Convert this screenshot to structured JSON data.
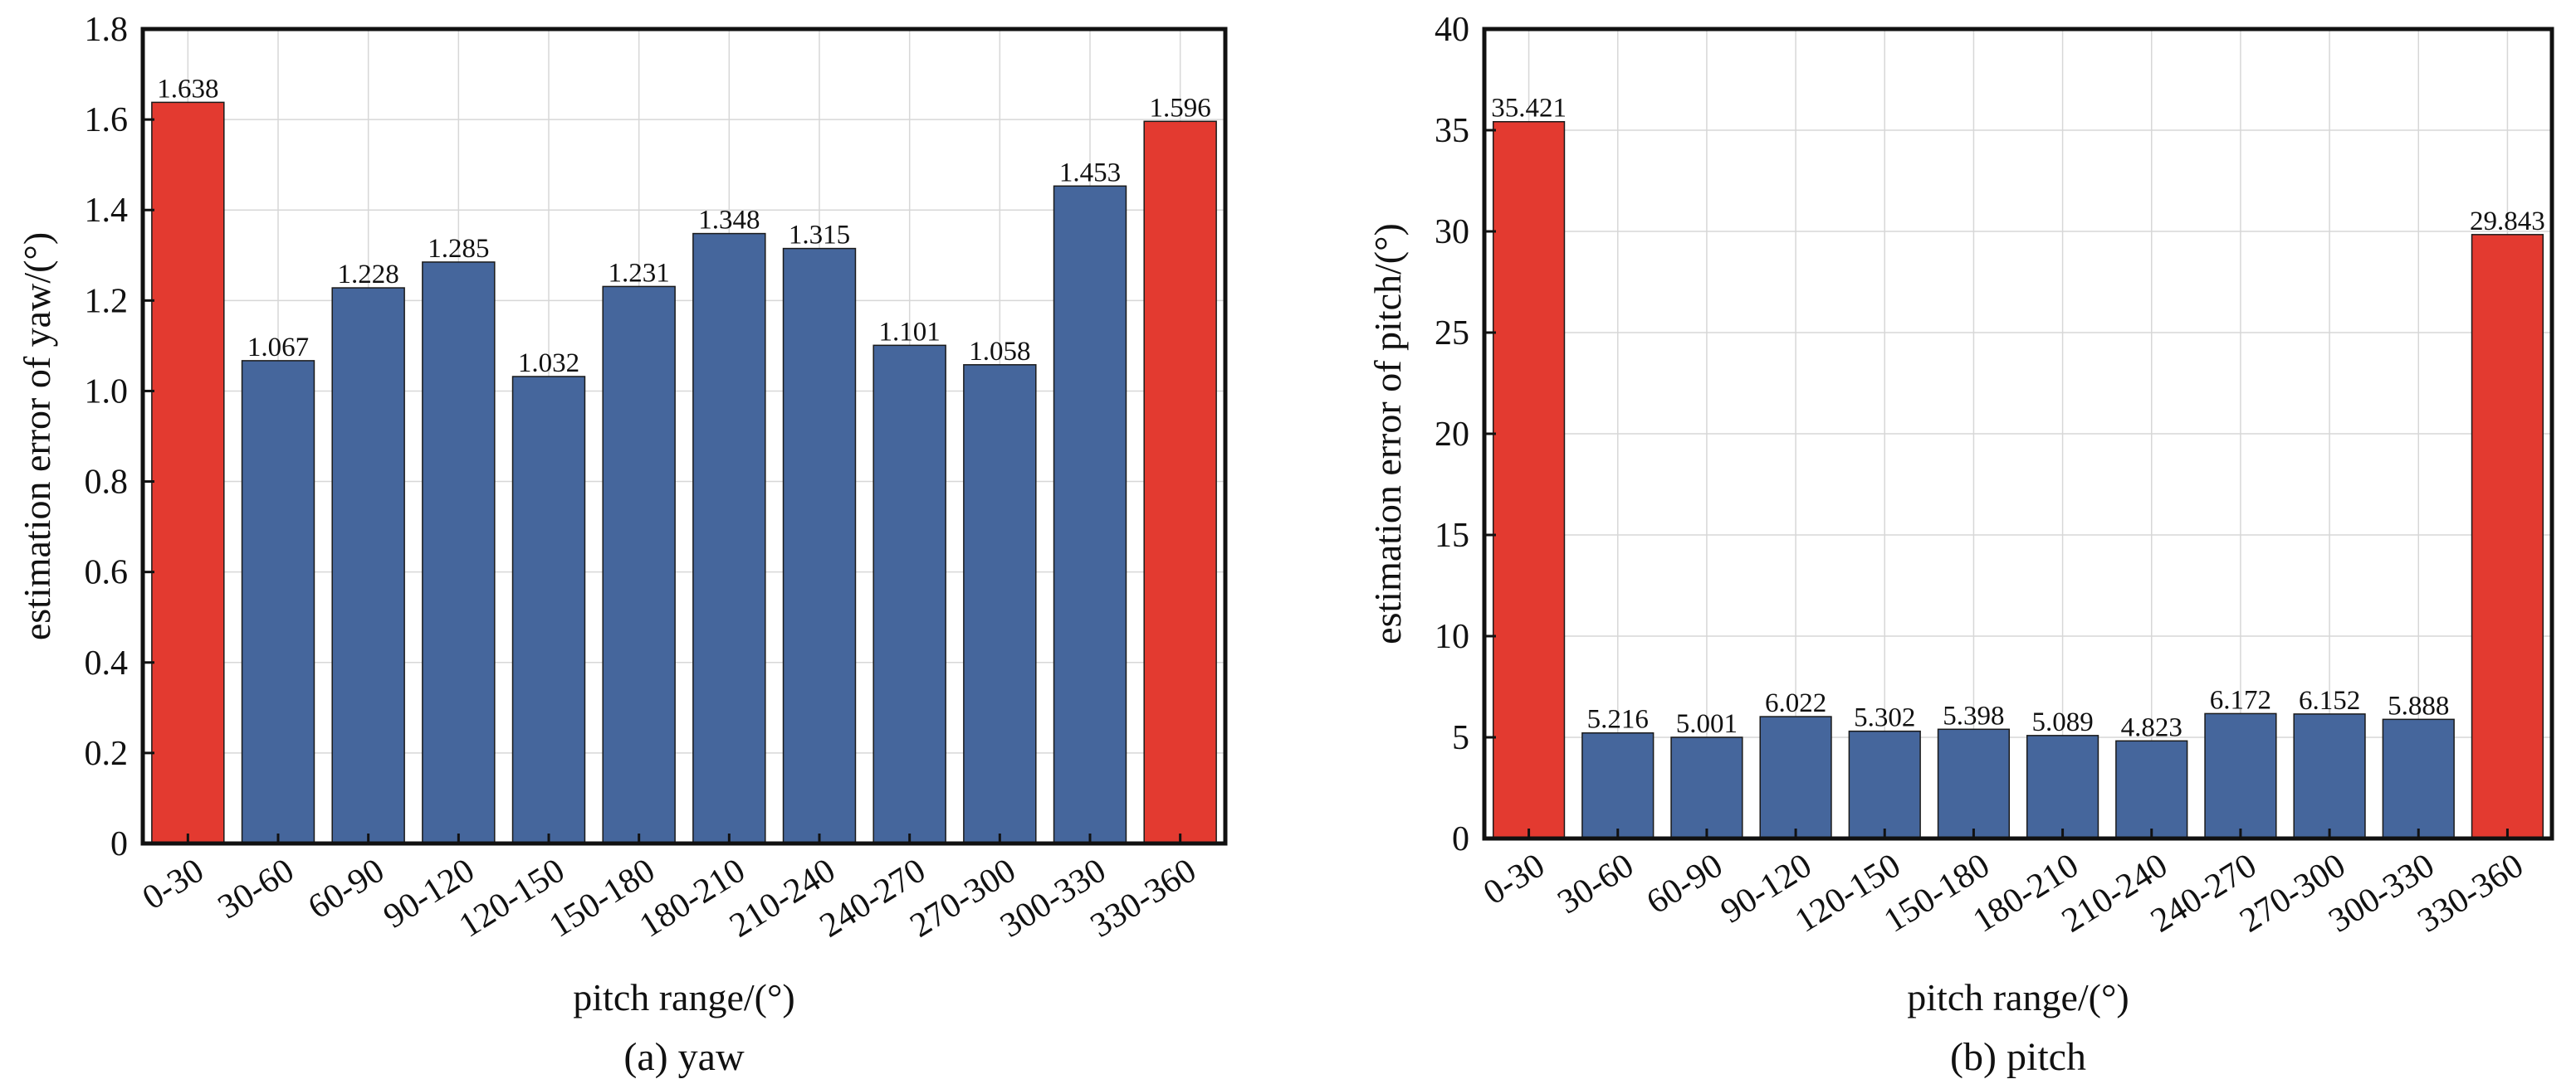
{
  "chart_data": [
    {
      "type": "bar",
      "caption": "(a) yaw",
      "xlabel": "pitch range/(°)",
      "ylabel": "estimation error of yaw/(°)",
      "ylim": [
        0,
        1.8
      ],
      "yticks": [
        "0",
        "0.2",
        "0.4",
        "0.6",
        "0.8",
        "1.0",
        "1.2",
        "1.4",
        "1.6",
        "1.8"
      ],
      "grid": true,
      "categories": [
        "0-30",
        "30-60",
        "60-90",
        "90-120",
        "120-150",
        "150-180",
        "180-210",
        "210-240",
        "240-270",
        "270-300",
        "300-330",
        "330-360"
      ],
      "values": [
        1.638,
        1.067,
        1.228,
        1.285,
        1.032,
        1.231,
        1.348,
        1.315,
        1.101,
        1.058,
        1.453,
        1.596
      ],
      "value_labels": [
        "1.638",
        "1.067",
        "1.228",
        "1.285",
        "1.032",
        "1.231",
        "1.348",
        "1.315",
        "1.101",
        "1.058",
        "1.453",
        "1.596"
      ],
      "colors": [
        "#e33a30",
        "#45669c",
        "#45669c",
        "#45669c",
        "#45669c",
        "#45669c",
        "#45669c",
        "#45669c",
        "#45669c",
        "#45669c",
        "#45669c",
        "#e33a30"
      ]
    },
    {
      "type": "bar",
      "caption": "(b) pitch",
      "xlabel": "pitch range/(°)",
      "ylabel": "estimation error of pitch/(°)",
      "ylim": [
        0,
        40
      ],
      "yticks": [
        "0",
        "5",
        "10",
        "15",
        "20",
        "25",
        "30",
        "35",
        "40"
      ],
      "grid": true,
      "categories": [
        "0-30",
        "30-60",
        "60-90",
        "90-120",
        "120-150",
        "150-180",
        "180-210",
        "210-240",
        "240-270",
        "270-300",
        "300-330",
        "330-360"
      ],
      "values": [
        35.421,
        5.216,
        5.001,
        6.022,
        5.302,
        5.398,
        5.089,
        4.823,
        6.172,
        6.152,
        5.888,
        29.843
      ],
      "value_labels": [
        "35.421",
        "5.216",
        "5.001",
        "6.022",
        "5.302",
        "5.398",
        "5.089",
        "4.823",
        "6.172",
        "6.152",
        "5.888",
        "29.843"
      ],
      "colors": [
        "#e33a30",
        "#45669c",
        "#45669c",
        "#45669c",
        "#45669c",
        "#45669c",
        "#45669c",
        "#45669c",
        "#45669c",
        "#45669c",
        "#45669c",
        "#e33a30"
      ]
    }
  ]
}
